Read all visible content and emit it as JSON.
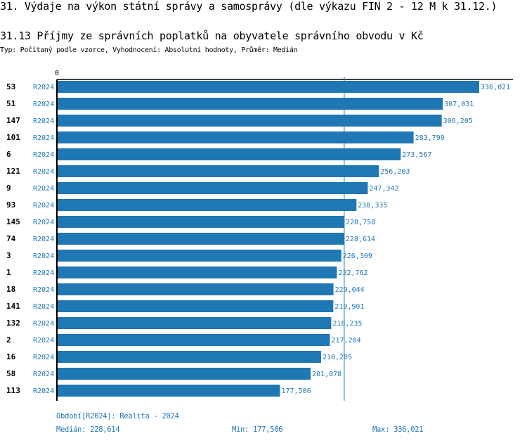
{
  "header": {
    "title": "31. Výdaje na výkon státní správy a samosprávy (dle výkazu FIN 2 - 12 M k 31.12.)",
    "subtitle": "31.13 Příjmy ze správních poplatků na obyvatele správního obvodu v Kč",
    "info": "Typ: Počítaný podle vzorce, Vyhodnocení: Absolutní hodnoty, Průměr: Medián"
  },
  "footer": {
    "period": "Období[R2024]: Realita - 2024",
    "median": "Medián: 228,614",
    "min": "Min: 177,506",
    "max": "Max: 336,021"
  },
  "chart_data": {
    "type": "bar",
    "orientation": "horizontal",
    "axis_zero_label": "0",
    "median": 228614,
    "xlim": [
      0,
      336021
    ],
    "bar_color": "#1f77b4",
    "categories": [
      "53",
      "51",
      "147",
      "101",
      "6",
      "121",
      "9",
      "93",
      "145",
      "74",
      "3",
      "1",
      "18",
      "141",
      "132",
      "2",
      "16",
      "58",
      "113"
    ],
    "series_label": "R2024",
    "values": [
      336021,
      307031,
      306205,
      283799,
      273567,
      256203,
      247342,
      238335,
      228758,
      228614,
      226309,
      222762,
      220044,
      219901,
      218235,
      217204,
      210205,
      201878,
      177506
    ],
    "value_labels": [
      "336,021",
      "307,031",
      "306,205",
      "283,799",
      "273,567",
      "256,203",
      "247,342",
      "238,335",
      "228,758",
      "228,614",
      "226,309",
      "222,762",
      "220,044",
      "219,901",
      "218,235",
      "217,204",
      "210,205",
      "201,878",
      "177,506"
    ]
  }
}
